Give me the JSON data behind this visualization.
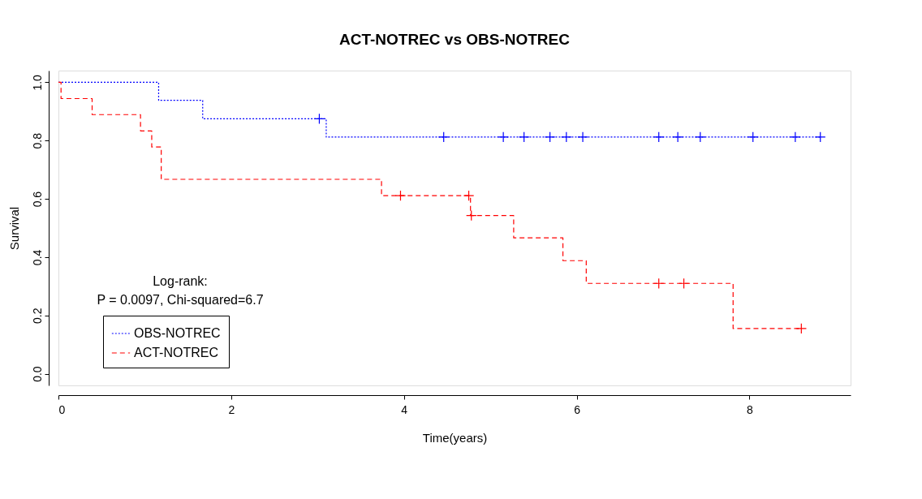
{
  "chart_data": {
    "type": "step",
    "title": "ACT-NOTREC vs OBS-NOTREC",
    "xlabel": "Time(years)",
    "ylabel": "Survival",
    "xlim": [
      0,
      9.17
    ],
    "ylim": [
      -0.04,
      1.04
    ],
    "xticks": [
      0,
      2,
      4,
      6,
      8
    ],
    "yticks": [
      {
        "value": 0,
        "label": "0.0"
      },
      {
        "value": 0.2,
        "label": "0.2"
      },
      {
        "value": 0.4,
        "label": "0.4"
      },
      {
        "value": 0.6,
        "label": "0.6"
      },
      {
        "value": 0.8,
        "label": "0.8"
      },
      {
        "value": 1,
        "label": "1.0"
      }
    ],
    "grid": false,
    "legend": "bottom left",
    "annotations": [
      "Log-rank:",
      "P = 0.0097, Chi-squared=6.7"
    ],
    "series": [
      {
        "name": "OBS-NOTREC",
        "color": "#0000ff",
        "line_style": "dotted",
        "x": [
          0,
          1.16,
          1.67,
          3.1,
          8.82
        ],
        "values": [
          1,
          0.938,
          0.875,
          0.812,
          0.812
        ]
      },
      {
        "name": "ACT-NOTREC",
        "color": "#ff0000",
        "line_style": "dashed",
        "x": [
          0,
          0.03,
          0.39,
          0.95,
          1.08,
          1.19,
          3.74,
          4.77,
          5.27,
          5.84,
          6.11,
          7.81,
          8.6
        ],
        "values": [
          1,
          0.944,
          0.889,
          0.833,
          0.778,
          0.667,
          0.611,
          0.543,
          0.466,
          0.388,
          0.31,
          0.155,
          0.155
        ]
      },
      {
        "type": "scatter",
        "color": "#0000ff",
        "marker": "cross",
        "x": [
          3.02,
          4.46,
          5.15,
          5.39,
          5.69,
          5.88,
          6.07,
          6.95,
          7.17,
          7.43,
          8.04,
          8.53,
          8.82
        ],
        "values": [
          0.875,
          0.812,
          0.812,
          0.812,
          0.812,
          0.812,
          0.812,
          0.812,
          0.812,
          0.812,
          0.812,
          0.812,
          0.812
        ]
      },
      {
        "type": "scatter",
        "color": "#ff0000",
        "marker": "cross",
        "x": [
          3.96,
          4.75,
          4.78,
          6.95,
          7.24,
          8.6
        ],
        "values": [
          0.611,
          0.611,
          0.543,
          0.31,
          0.31,
          0.155
        ]
      }
    ]
  }
}
